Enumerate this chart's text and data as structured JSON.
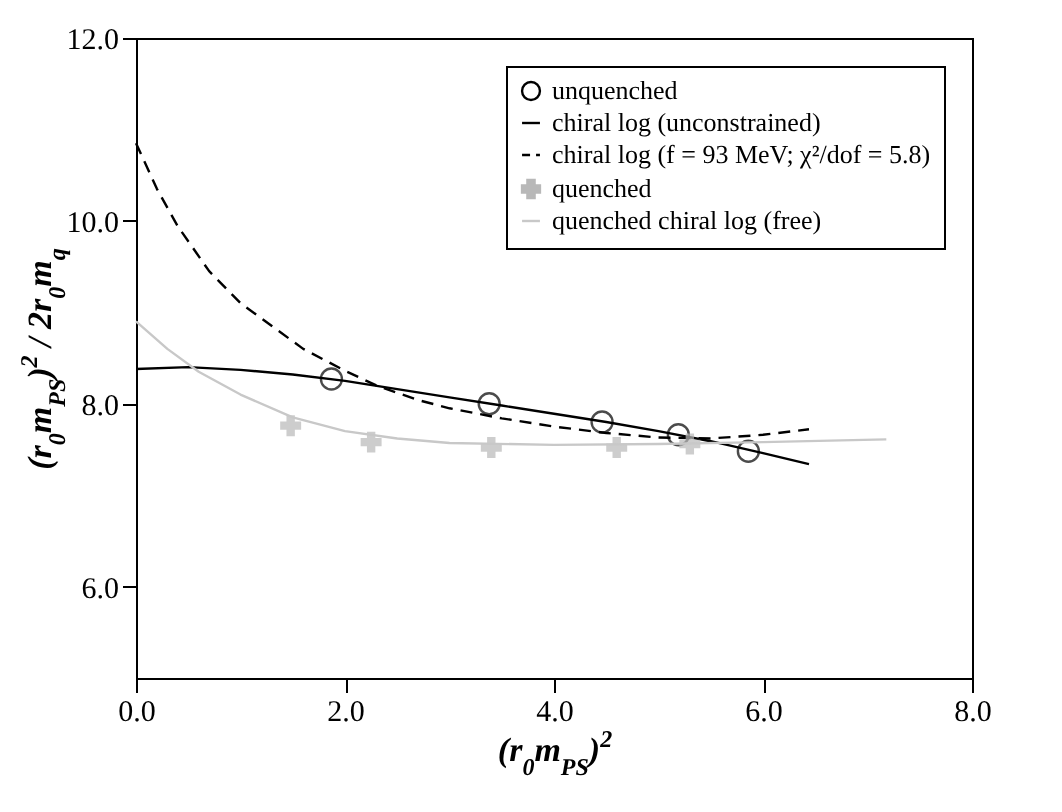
{
  "chart_data": {
    "type": "line",
    "xlabel": "(r$_{0}$m$_{PS}$)$^{2}$",
    "ylabel": "(r$_{0}$m$_{PS}$)$^{2}$ / 2r$_{0}$m$_{q}$",
    "xlim": [
      0,
      8
    ],
    "xticks": [
      {
        "value": 0,
        "label": "0.0"
      },
      {
        "value": 2,
        "label": "2.0"
      },
      {
        "value": 4,
        "label": "4.0"
      },
      {
        "value": 6,
        "label": "6.0"
      },
      {
        "value": 8,
        "label": "8.0"
      }
    ],
    "ylim": [
      5,
      12
    ],
    "yticks": [
      {
        "value": 6,
        "label": "6.0"
      },
      {
        "value": 8,
        "label": "8.0"
      },
      {
        "value": 10,
        "label": "10.0"
      },
      {
        "value": 12,
        "label": "12.0"
      }
    ],
    "legend": "top right",
    "grid": false,
    "series": [
      {
        "name": "unquenched",
        "type": "scatter",
        "marker": "circle",
        "color": "#000000",
        "x": [
          1.87,
          3.38,
          4.46,
          5.19,
          5.86
        ],
        "values": [
          8.27,
          8.0,
          7.8,
          7.66,
          7.48
        ]
      },
      {
        "name": "chiral log (unconstrained)",
        "line_style": "solid",
        "color": "#000000",
        "x": [
          0,
          0.5,
          1,
          1.5,
          2,
          2.5,
          3,
          3.5,
          4,
          4.5,
          5,
          5.5,
          6,
          6.44
        ],
        "values": [
          8.38,
          8.4,
          8.37,
          8.32,
          8.25,
          8.16,
          8.07,
          7.98,
          7.89,
          7.8,
          7.7,
          7.59,
          7.46,
          7.34
        ]
      },
      {
        "name": "chiral log (f = 93 MeV; χ²/dof = 5.8)",
        "line_style": "dashed",
        "color": "#000000",
        "x": [
          0,
          0.2,
          0.4,
          0.7,
          1,
          1.3,
          1.6,
          2,
          2.3,
          2.7,
          3,
          3.5,
          4,
          4.5,
          5,
          5.5,
          6,
          6.44
        ],
        "values": [
          10.85,
          10.35,
          9.94,
          9.45,
          9.1,
          8.85,
          8.6,
          8.36,
          8.2,
          8.04,
          7.95,
          7.84,
          7.75,
          7.68,
          7.63,
          7.62,
          7.66,
          7.72
        ]
      },
      {
        "name": "quenched",
        "type": "scatter",
        "marker": "cross",
        "color": "#b8b8b8",
        "x": [
          1.48,
          2.25,
          3.4,
          4.6,
          5.3
        ],
        "values": [
          7.76,
          7.58,
          7.52,
          7.52,
          7.56
        ]
      },
      {
        "name": "quenched chiral log (free)",
        "line_style": "solid",
        "color": "#c8c8c8",
        "x": [
          0,
          0.3,
          0.6,
          1,
          1.5,
          2,
          2.5,
          3,
          4,
          5,
          6,
          7.18
        ],
        "values": [
          8.9,
          8.6,
          8.35,
          8.1,
          7.85,
          7.7,
          7.62,
          7.57,
          7.55,
          7.56,
          7.58,
          7.61
        ]
      }
    ]
  }
}
